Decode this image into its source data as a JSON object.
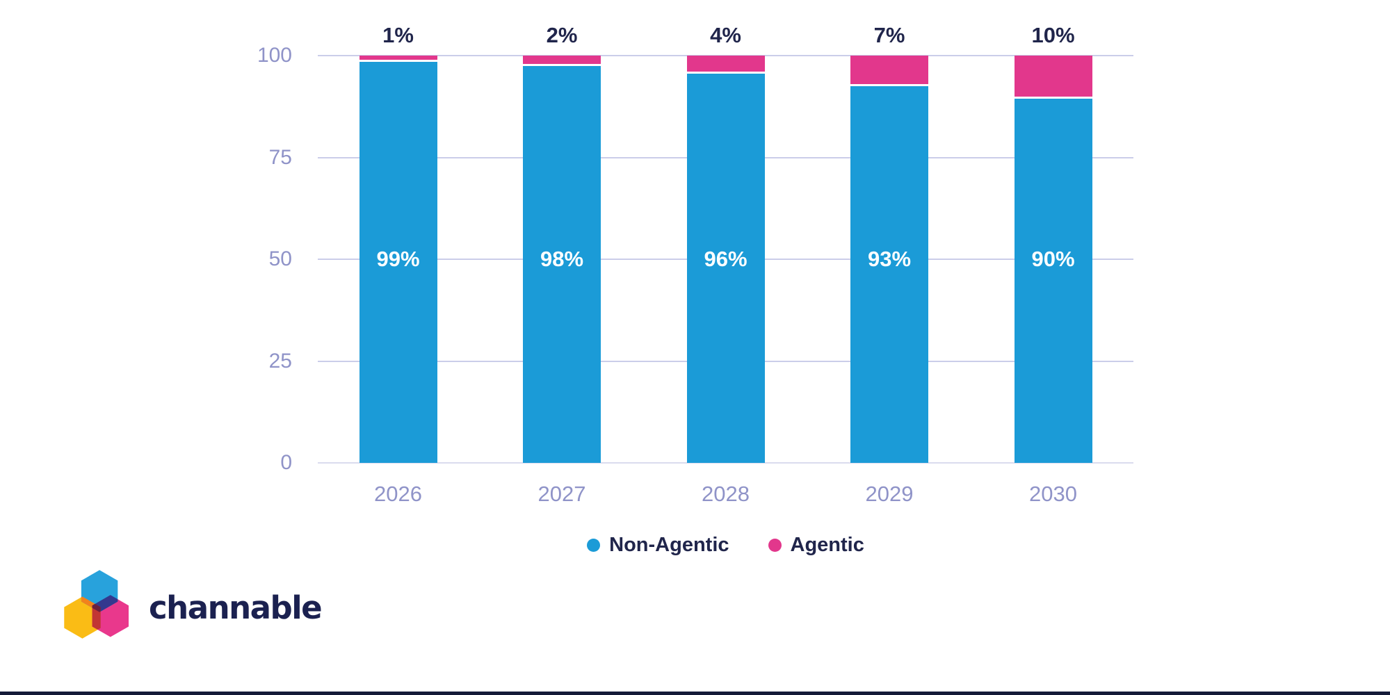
{
  "chart_data": {
    "type": "bar",
    "stacked": true,
    "title": "",
    "categories": [
      "2026",
      "2027",
      "2028",
      "2029",
      "2030"
    ],
    "series": [
      {
        "name": "Non-Agentic",
        "values": [
          99,
          98,
          96,
          93,
          90
        ]
      },
      {
        "name": "Agentic",
        "values": [
          1,
          2,
          4,
          7,
          10
        ]
      }
    ],
    "top_labels": [
      "1%",
      "2%",
      "4%",
      "7%",
      "10%"
    ],
    "inside_labels": [
      "99%",
      "98%",
      "96%",
      "93%",
      "90%"
    ],
    "y_ticks": [
      "100",
      "75",
      "50",
      "25",
      "0"
    ],
    "ylim": [
      0,
      100
    ],
    "xlabel": "",
    "ylabel": "",
    "grid": true,
    "legend_position": "bottom-center"
  },
  "legend": {
    "items": [
      {
        "label": "Non-Agentic",
        "color": "#1B9BD7"
      },
      {
        "label": "Agentic",
        "color": "#E2378C"
      }
    ]
  },
  "branding": {
    "wordmark": "channable"
  },
  "colors": {
    "blue": "#1B9BD7",
    "pink": "#E2378C",
    "navy": "#20254B",
    "lavender": "#8F93C8",
    "gridline": "#CBCDE9",
    "baseline": "#DADBEE",
    "footer": "#141A38",
    "wordmark_navy": "#1B2150",
    "logo_blue": "#28A2DC",
    "logo_yellow": "#FABC15",
    "logo_pink": "#E9388C",
    "logo_orange": "#F2821C",
    "logo_indigo": "#34388E",
    "logo_red": "#C23534",
    "logo_maroon": "#6B1F3E"
  }
}
